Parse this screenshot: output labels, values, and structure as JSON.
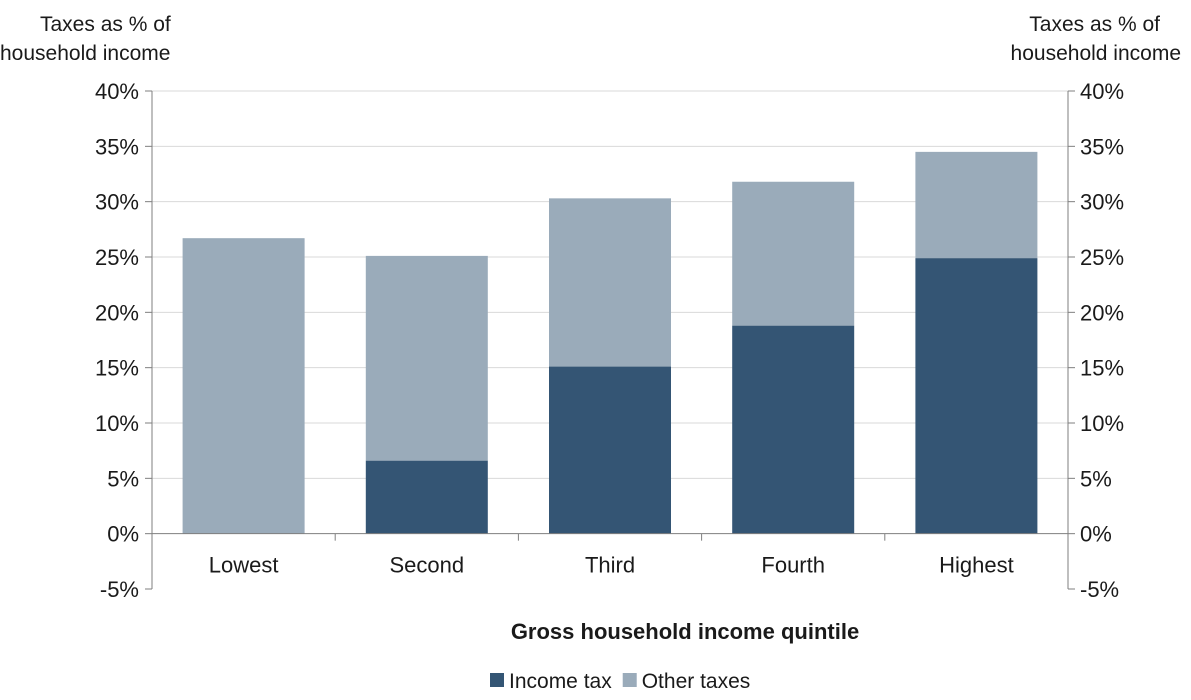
{
  "chart_data": {
    "type": "bar",
    "stacked": true,
    "title": "",
    "ylabel_left": [
      "Taxes as % of",
      "household income"
    ],
    "ylabel_right": [
      "Taxes as % of",
      "household income"
    ],
    "xlabel": "Gross household income quintile",
    "categories": [
      "Lowest",
      "Second",
      "Third",
      "Fourth",
      "Highest"
    ],
    "series": [
      {
        "name": "Income tax",
        "color": "#345574",
        "values": [
          0.0,
          6.6,
          15.1,
          18.8,
          24.9
        ]
      },
      {
        "name": "Other taxes",
        "color": "#9aabba",
        "values": [
          26.7,
          18.5,
          15.2,
          13.0,
          9.6
        ]
      }
    ],
    "ylim": [
      -5,
      40
    ],
    "yticks": [
      -5,
      0,
      5,
      10,
      15,
      20,
      25,
      30,
      35,
      40
    ],
    "ytick_labels": [
      "-5%",
      "0%",
      "5%",
      "10%",
      "15%",
      "20%",
      "25%",
      "30%",
      "35%",
      "40%"
    ],
    "grid": true,
    "gridline_color": "#d9d9d9",
    "legend_position": "bottom"
  }
}
